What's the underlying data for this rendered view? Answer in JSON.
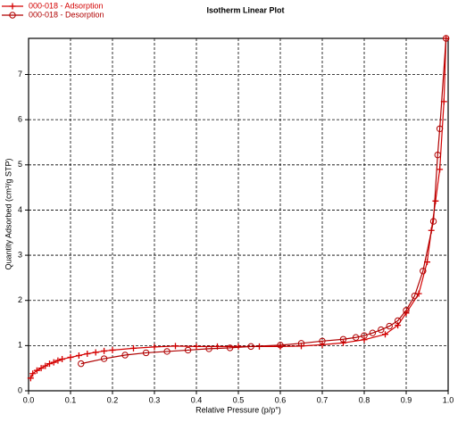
{
  "chart_data": {
    "type": "line",
    "title": "Isotherm Linear Plot",
    "x_label": "Relative Pressure (p/p°)",
    "y_label": "Quantity Adsorbed (cm³/g STP)",
    "xlim": [
      0,
      1
    ],
    "ylim": [
      0,
      7.8
    ],
    "xticks": [
      {
        "value": 0,
        "label": "0.0"
      },
      0.1,
      0.2,
      0.3,
      0.4,
      0.5,
      0.6,
      0.7,
      0.8,
      0.9,
      {
        "value": 1,
        "label": "1.0"
      }
    ],
    "yticks": [
      0,
      1,
      2,
      3,
      4,
      5,
      6,
      7
    ],
    "grid": true,
    "legend": "upper left",
    "series": [
      {
        "name": "000-018 - Adsorption",
        "color": "#d40000",
        "marker": "plus",
        "x": [
          0.005,
          0.01,
          0.02,
          0.03,
          0.04,
          0.05,
          0.06,
          0.07,
          0.08,
          0.1,
          0.12,
          0.14,
          0.16,
          0.18,
          0.2,
          0.25,
          0.3,
          0.35,
          0.4,
          0.45,
          0.5,
          0.55,
          0.6,
          0.65,
          0.7,
          0.75,
          0.8,
          0.85,
          0.88,
          0.9,
          0.93,
          0.95,
          0.96,
          0.97,
          0.98,
          0.99,
          0.995
        ],
        "values": [
          0.28,
          0.38,
          0.45,
          0.5,
          0.55,
          0.6,
          0.63,
          0.67,
          0.7,
          0.74,
          0.78,
          0.82,
          0.85,
          0.88,
          0.9,
          0.94,
          0.97,
          0.99,
          0.98,
          0.98,
          0.98,
          0.98,
          0.98,
          0.99,
          1.02,
          1.06,
          1.13,
          1.25,
          1.45,
          1.72,
          2.15,
          2.85,
          3.55,
          4.2,
          4.9,
          6.4,
          7.8
        ]
      },
      {
        "name": "000-018 - Desorption",
        "color": "#b00000",
        "marker": "circle",
        "x": [
          0.995,
          0.98,
          0.975,
          0.965,
          0.94,
          0.92,
          0.9,
          0.88,
          0.86,
          0.84,
          0.82,
          0.8,
          0.78,
          0.75,
          0.7,
          0.65,
          0.6,
          0.53,
          0.48,
          0.43,
          0.38,
          0.33,
          0.28,
          0.23,
          0.18,
          0.125
        ],
        "values": [
          7.8,
          5.8,
          5.22,
          3.75,
          2.65,
          2.1,
          1.78,
          1.55,
          1.43,
          1.35,
          1.28,
          1.22,
          1.18,
          1.14,
          1.1,
          1.05,
          1.01,
          0.98,
          0.95,
          0.93,
          0.9,
          0.87,
          0.84,
          0.79,
          0.71,
          0.6
        ]
      }
    ]
  }
}
